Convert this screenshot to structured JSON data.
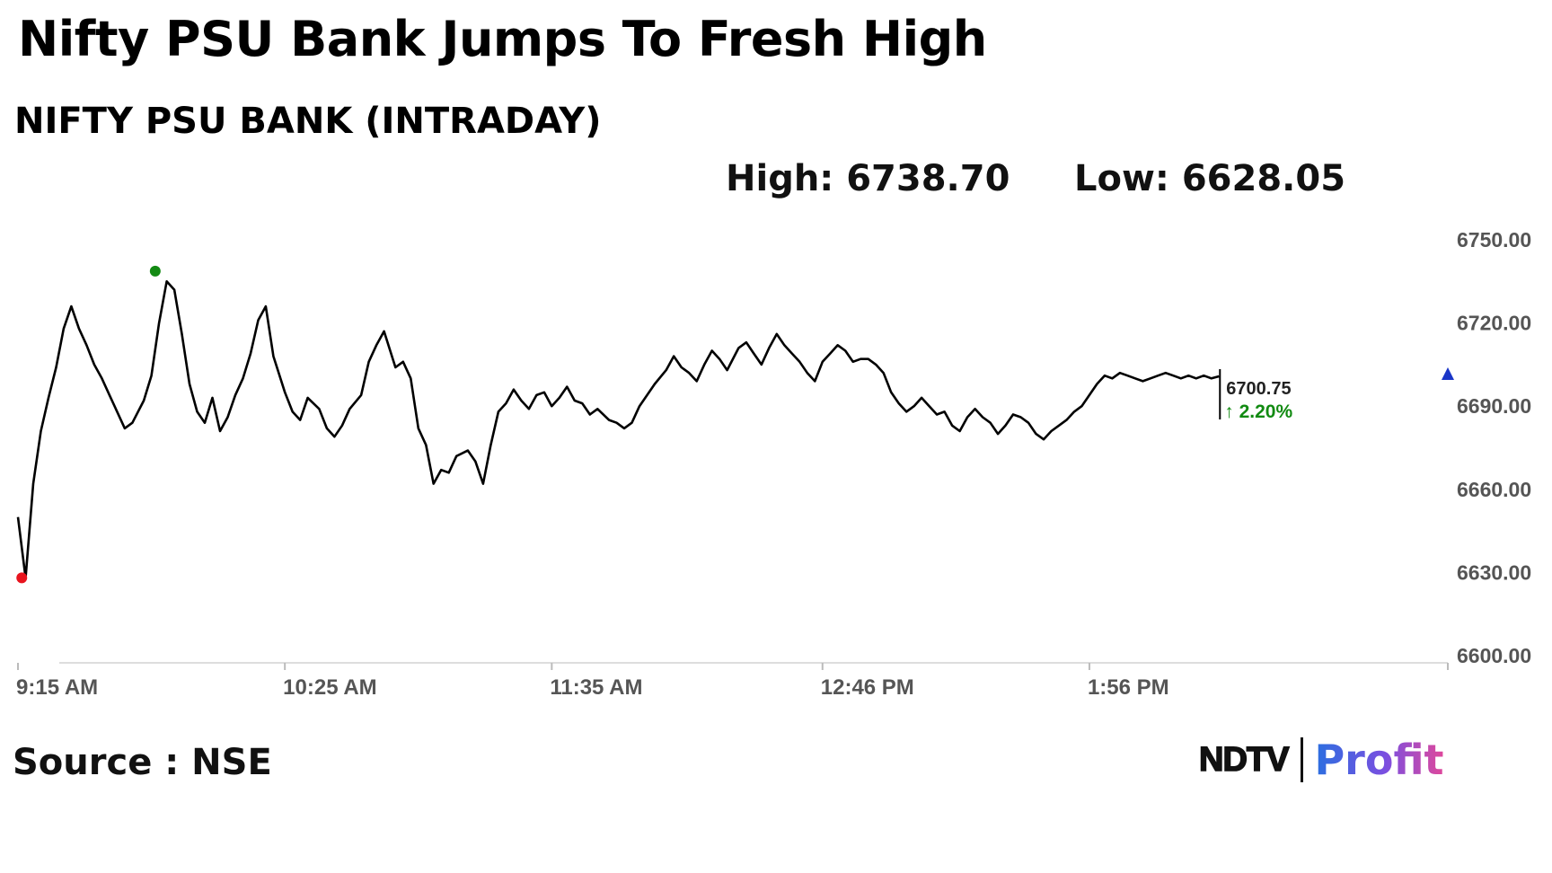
{
  "headline": "Nifty PSU Bank Jumps To Fresh High",
  "stats": {
    "high_label": "High: 6738.70",
    "low_label": "Low: 6628.05"
  },
  "source": "Source : NSE",
  "logo": {
    "left": "NDTV",
    "right": "Profit"
  },
  "colors": {
    "line": "#000000",
    "high_marker": "#138a13",
    "low_marker": "#e8141e",
    "last_marker": "#1a36c8",
    "change": "#118a11",
    "axis": "#dddddd"
  },
  "chart_data": {
    "type": "line",
    "title": "NIFTY PSU BANK (INTRADAY)",
    "xlabel": "",
    "ylabel": "",
    "y_ticks": [
      "6750.00",
      "6720.00",
      "6690.00",
      "6660.00",
      "6630.00",
      "6600.00"
    ],
    "x_ticks": [
      "9:15 AM",
      "10:25 AM",
      "11:35 AM",
      "12:46 PM",
      "1:56 PM"
    ],
    "ylim": [
      6600,
      6750
    ],
    "x_range": [
      "9:15",
      "15:30"
    ],
    "grid": false,
    "series": [
      {
        "x": [
          "9:15",
          "9:17",
          "9:19",
          "9:21",
          "9:23",
          "9:25",
          "9:27",
          "9:29",
          "9:31",
          "9:33",
          "9:35",
          "9:37",
          "9:39",
          "9:41",
          "9:43",
          "9:45",
          "9:48",
          "9:50",
          "9:52",
          "9:54",
          "9:56",
          "9:58",
          "10:00",
          "10:02",
          "10:04",
          "10:06",
          "10:08",
          "10:10",
          "10:12",
          "10:14",
          "10:16",
          "10:18",
          "10:20",
          "10:22",
          "10:25",
          "10:27",
          "10:29",
          "10:31",
          "10:34",
          "10:36",
          "10:38",
          "10:40",
          "10:42",
          "10:45",
          "10:47",
          "10:49",
          "10:51",
          "10:54",
          "10:56",
          "10:58",
          "11:00",
          "11:02",
          "11:04",
          "11:06",
          "11:08",
          "11:10",
          "11:13",
          "11:15",
          "11:17",
          "11:19",
          "11:21",
          "11:23",
          "11:25",
          "11:27",
          "11:29",
          "11:31",
          "11:33",
          "11:35",
          "11:37",
          "11:39",
          "11:41",
          "11:43",
          "11:45",
          "11:47",
          "11:50",
          "11:52",
          "11:54",
          "11:56",
          "11:58",
          "12:00",
          "12:02",
          "12:05",
          "12:07",
          "12:09",
          "12:11",
          "12:13",
          "12:15",
          "12:17",
          "12:19",
          "12:21",
          "12:24",
          "12:26",
          "12:28",
          "12:30",
          "12:32",
          "12:34",
          "12:36",
          "12:38",
          "12:40",
          "12:42",
          "12:44",
          "12:46",
          "12:48",
          "12:50",
          "12:52",
          "12:54",
          "12:56",
          "12:58",
          "13:00",
          "13:02",
          "13:04",
          "13:06",
          "13:08",
          "13:10",
          "13:12",
          "13:14",
          "13:16",
          "13:18",
          "13:20",
          "13:22",
          "13:24",
          "13:26",
          "13:28",
          "13:30",
          "13:32",
          "13:34",
          "13:36",
          "13:38",
          "13:40",
          "13:42",
          "13:44",
          "13:46",
          "13:48",
          "13:50",
          "13:52",
          "13:54",
          "13:56",
          "13:58",
          "14:00",
          "14:02",
          "14:04",
          "14:06",
          "14:08",
          "14:10",
          "14:12",
          "14:14",
          "14:16",
          "14:18",
          "14:20",
          "14:22",
          "14:24",
          "14:26",
          "14:28",
          "14:30"
        ],
        "values": [
          6650,
          6628,
          6662,
          6681,
          6693,
          6704,
          6718,
          6726,
          6718,
          6712,
          6705,
          6700,
          6694,
          6688,
          6682,
          6684,
          6692,
          6701,
          6720,
          6735,
          6732,
          6716,
          6698,
          6688,
          6684,
          6693,
          6681,
          6686,
          6694,
          6700,
          6709,
          6721,
          6726,
          6708,
          6695,
          6688,
          6685,
          6693,
          6689,
          6682,
          6679,
          6683,
          6689,
          6694,
          6706,
          6712,
          6717,
          6704,
          6706,
          6700,
          6682,
          6676,
          6662,
          6667,
          6666,
          6672,
          6674,
          6670,
          6662,
          6676,
          6688,
          6691,
          6696,
          6692,
          6689,
          6694,
          6695,
          6690,
          6693,
          6697,
          6692,
          6691,
          6687,
          6689,
          6685,
          6684,
          6682,
          6684,
          6690,
          6694,
          6698,
          6703,
          6708,
          6704,
          6702,
          6699,
          6705,
          6710,
          6707,
          6703,
          6711,
          6713,
          6709,
          6705,
          6711,
          6716,
          6712,
          6709,
          6706,
          6702,
          6699,
          6706,
          6709,
          6712,
          6710,
          6706,
          6707,
          6707,
          6705,
          6702,
          6695,
          6691,
          6688,
          6690,
          6693,
          6690,
          6687,
          6688,
          6683,
          6681,
          6686,
          6689,
          6686,
          6684,
          6680,
          6683,
          6687,
          6686,
          6684,
          6680,
          6678,
          6681,
          6683,
          6685,
          6688,
          6690,
          6694,
          6698,
          6701,
          6700,
          6702,
          6701,
          6700,
          6699,
          6700,
          6701,
          6702,
          6701,
          6700,
          6701,
          6700,
          6701,
          6700,
          6700.75
        ],
        "high": {
          "x": "9:51",
          "value": 6738.7
        },
        "low": {
          "x": "9:16",
          "value": 6628.05
        },
        "last": {
          "value": "6700.75",
          "change": "↑ 2.20%"
        }
      }
    ]
  }
}
